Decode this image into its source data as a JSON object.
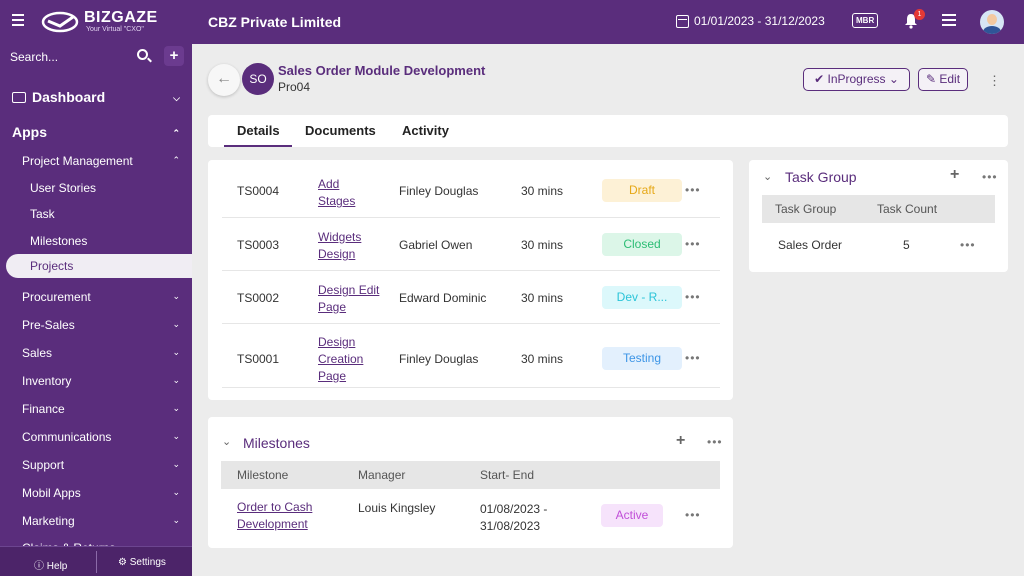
{
  "topbar": {
    "brand": "BIZGAZE",
    "brand_tagline": "Your Virtual \"CXO\"",
    "company": "CBZ Private Limited",
    "date_range": "01/01/2023 - 31/12/2023",
    "mbr_label": "MBR",
    "notification_count": "1"
  },
  "sidebar": {
    "search_placeholder": "Search...",
    "dashboard": "Dashboard",
    "apps": "Apps",
    "project_management": "Project Management",
    "pm_items": [
      "User Stories",
      "Task",
      "Milestones",
      "Projects"
    ],
    "modules": [
      "Procurement",
      "Pre-Sales",
      "Sales",
      "Inventory",
      "Finance",
      "Communications",
      "Support",
      "Mobil Apps",
      "Marketing",
      "Claims & Returns"
    ],
    "footer": {
      "help": "Help",
      "settings": "Settings"
    }
  },
  "header": {
    "avatar_initials": "SO",
    "title": "Sales Order Module Development",
    "code": "Pro04",
    "status": "InProgress",
    "edit": "Edit"
  },
  "tabs": [
    "Details",
    "Documents",
    "Activity"
  ],
  "tasks": [
    {
      "id": "TS0004",
      "name_lines": [
        "Add",
        "Stages"
      ],
      "assignee": "Finley Douglas",
      "duration": "30 mins",
      "status": "Draft",
      "status_bg": "#fdf1d6",
      "status_color": "#e6a817"
    },
    {
      "id": "TS0003",
      "name_lines": [
        "Widgets",
        "Design"
      ],
      "assignee": "Gabriel Owen",
      "duration": "30 mins",
      "status": "Closed",
      "status_bg": "#dcf6e8",
      "status_color": "#2dbd75"
    },
    {
      "id": "TS0002",
      "name_lines": [
        "Design Edit",
        "Page"
      ],
      "assignee": "Edward Dominic",
      "duration": "30 mins",
      "status": "Dev - R...",
      "status_bg": "#dcf8fb",
      "status_color": "#2bc4d8"
    },
    {
      "id": "TS0001",
      "name_lines": [
        "Design",
        "Creation",
        "Page"
      ],
      "assignee": "Finley Douglas",
      "duration": "30 mins",
      "status": "Testing",
      "status_bg": "#e3f0fd",
      "status_color": "#3d95e6"
    }
  ],
  "milestones": {
    "title": "Milestones",
    "columns": [
      "Milestone",
      "Manager",
      "Start- End"
    ],
    "rows": [
      {
        "name_lines": [
          "Order to Cash",
          "Development"
        ],
        "manager": "Louis Kingsley",
        "dates": [
          "01/08/2023 -",
          "31/08/2023"
        ],
        "status": "Active",
        "status_bg": "#f6e3fb",
        "status_color": "#c04fd8"
      }
    ]
  },
  "task_group": {
    "title": "Task Group",
    "columns": [
      "Task Group",
      "Task Count"
    ],
    "rows": [
      {
        "group": "Sales Order",
        "count": "5"
      }
    ]
  },
  "colors": {
    "brand": "#5a2d7c",
    "background": "#ececec"
  }
}
